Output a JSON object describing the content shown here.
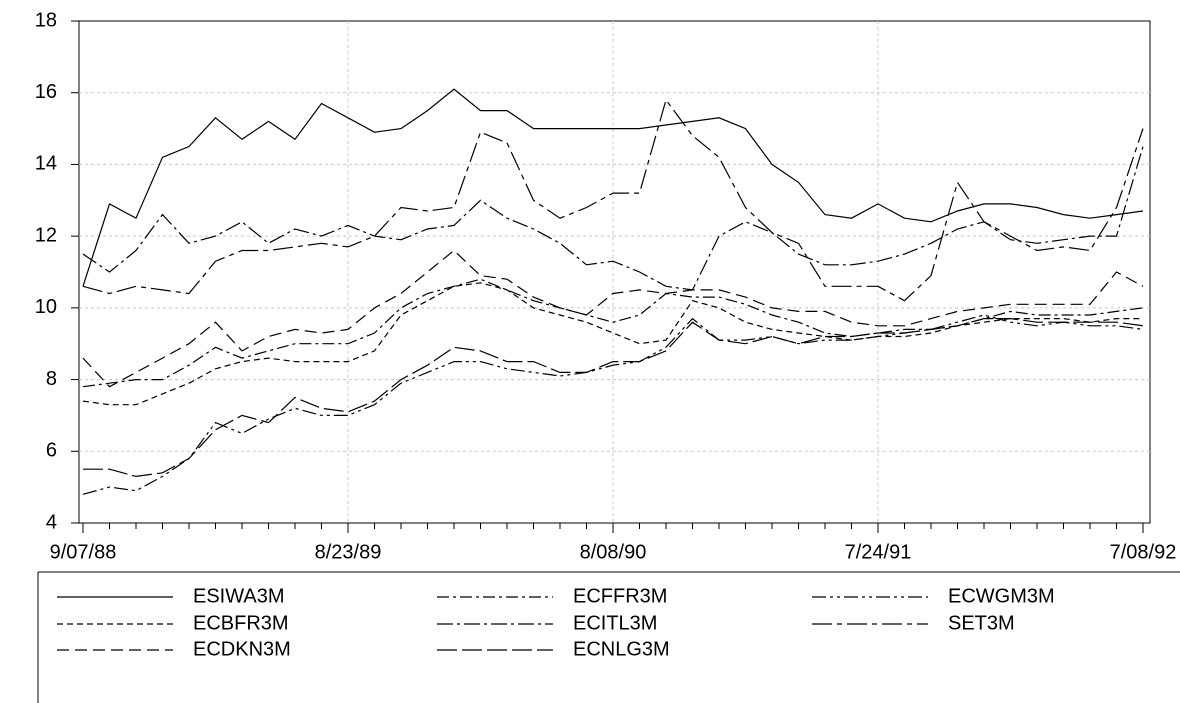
{
  "chart_data": {
    "type": "line",
    "categories": [
      "9/07/88",
      null,
      null,
      null,
      null,
      null,
      null,
      null,
      null,
      null,
      "8/23/89",
      null,
      null,
      null,
      null,
      null,
      null,
      null,
      null,
      null,
      "8/08/90",
      null,
      null,
      null,
      null,
      null,
      null,
      null,
      null,
      null,
      "7/24/91",
      null,
      null,
      null,
      null,
      null,
      null,
      null,
      null,
      null,
      "7/08/92"
    ],
    "ylim": [
      4,
      18
    ],
    "yticks": [
      4,
      6,
      8,
      10,
      12,
      14,
      16,
      18
    ],
    "grid": true,
    "series": [
      {
        "name": "ESIWA3M",
        "color": "#000000",
        "dash": "none",
        "values": [
          10.6,
          12.9,
          12.5,
          14.2,
          14.5,
          15.3,
          14.7,
          15.2,
          14.7,
          15.7,
          15.3,
          14.9,
          15.0,
          15.5,
          16.1,
          15.5,
          15.5,
          15.0,
          15.0,
          15.0,
          15.0,
          15.0,
          15.1,
          15.2,
          15.3,
          15.0,
          14.0,
          13.5,
          12.6,
          12.5,
          12.9,
          12.5,
          12.4,
          12.7,
          12.9,
          12.9,
          12.8,
          12.6,
          12.5,
          12.6,
          12.7
        ]
      },
      {
        "name": "ECFFR3M",
        "color": "#000000",
        "dash": "12,4,3,4",
        "values": [
          7.8,
          7.9,
          8.0,
          8.0,
          8.4,
          8.9,
          8.6,
          8.8,
          9.0,
          9.0,
          9.0,
          9.3,
          10.0,
          10.4,
          10.6,
          10.8,
          10.5,
          10.2,
          10.0,
          9.8,
          9.6,
          9.8,
          10.4,
          10.3,
          10.3,
          10.1,
          9.8,
          9.6,
          9.3,
          9.2,
          9.3,
          9.4,
          9.4,
          9.5,
          9.7,
          9.9,
          9.8,
          9.8,
          9.8,
          9.9,
          10.0
        ]
      },
      {
        "name": "ECWGM3M",
        "color": "#000000",
        "dash": "14,4,3,4,3,4",
        "values": [
          4.8,
          5.0,
          4.9,
          5.3,
          5.8,
          6.8,
          6.5,
          6.9,
          7.2,
          7.0,
          7.0,
          7.3,
          7.9,
          8.2,
          8.5,
          8.5,
          8.3,
          8.2,
          8.1,
          8.2,
          8.4,
          8.5,
          8.9,
          9.7,
          9.1,
          9.1,
          9.2,
          9.0,
          9.1,
          9.1,
          9.2,
          9.3,
          9.4,
          9.6,
          9.8,
          9.6,
          9.5,
          9.6,
          9.5,
          9.5,
          9.4
        ]
      },
      {
        "name": "ECBFR3M",
        "color": "#000000",
        "dash": "6,4",
        "values": [
          7.4,
          7.3,
          7.3,
          7.6,
          7.9,
          8.3,
          8.5,
          8.6,
          8.5,
          8.5,
          8.5,
          8.8,
          9.8,
          10.2,
          10.6,
          10.7,
          10.5,
          10.0,
          9.8,
          9.6,
          9.3,
          9.0,
          9.1,
          10.2,
          10.0,
          9.6,
          9.4,
          9.3,
          9.2,
          9.1,
          9.2,
          9.2,
          9.3,
          9.5,
          9.6,
          9.7,
          9.7,
          9.7,
          9.6,
          9.7,
          9.7
        ]
      },
      {
        "name": "ECITL3M",
        "color": "#000000",
        "dash": "16,4,3,4",
        "values": [
          11.5,
          11.0,
          11.6,
          12.6,
          11.8,
          12.0,
          12.4,
          11.8,
          12.2,
          12.0,
          12.3,
          12.0,
          11.9,
          12.2,
          12.3,
          13.0,
          12.5,
          12.2,
          11.8,
          11.2,
          11.3,
          11.0,
          10.6,
          10.5,
          12.0,
          12.4,
          12.1,
          11.5,
          11.2,
          11.2,
          11.3,
          11.5,
          11.8,
          12.2,
          12.4,
          11.9,
          11.8,
          11.9,
          12.0,
          12.0,
          14.5
        ]
      },
      {
        "name": "SET3M",
        "color": "#000000",
        "dash": "20,5,5,5",
        "values": [
          10.6,
          10.4,
          10.6,
          10.5,
          10.4,
          11.3,
          11.6,
          11.6,
          11.7,
          11.8,
          11.7,
          12.0,
          12.8,
          12.7,
          12.8,
          14.9,
          14.6,
          13.0,
          12.5,
          12.8,
          13.2,
          13.2,
          15.8,
          14.8,
          14.2,
          12.8,
          12.1,
          11.8,
          10.6,
          10.6,
          10.6,
          10.2,
          10.9,
          13.5,
          12.4,
          12.0,
          11.6,
          11.7,
          11.6,
          12.8,
          15.0
        ]
      },
      {
        "name": "ECDKN3M",
        "color": "#000000",
        "dash": "12,6",
        "values": [
          8.6,
          7.8,
          8.2,
          8.6,
          9.0,
          9.6,
          8.8,
          9.2,
          9.4,
          9.3,
          9.4,
          10.0,
          10.4,
          11.0,
          11.6,
          10.9,
          10.8,
          10.3,
          10.0,
          9.8,
          10.4,
          10.5,
          10.4,
          10.5,
          10.5,
          10.3,
          10.0,
          9.9,
          9.9,
          9.6,
          9.5,
          9.5,
          9.7,
          9.9,
          10.0,
          10.1,
          10.1,
          10.1,
          10.1,
          11.0,
          10.6
        ]
      },
      {
        "name": "ECNLG3M",
        "color": "#000000",
        "dash": "20,5",
        "values": [
          5.5,
          5.5,
          5.3,
          5.4,
          5.8,
          6.6,
          7.0,
          6.8,
          7.5,
          7.2,
          7.1,
          7.4,
          8.0,
          8.4,
          8.9,
          8.8,
          8.5,
          8.5,
          8.2,
          8.2,
          8.5,
          8.5,
          8.8,
          9.6,
          9.1,
          9.0,
          9.2,
          9.0,
          9.2,
          9.2,
          9.3,
          9.3,
          9.4,
          9.5,
          9.7,
          9.7,
          9.6,
          9.6,
          9.6,
          9.6,
          9.5
        ]
      }
    ]
  }
}
